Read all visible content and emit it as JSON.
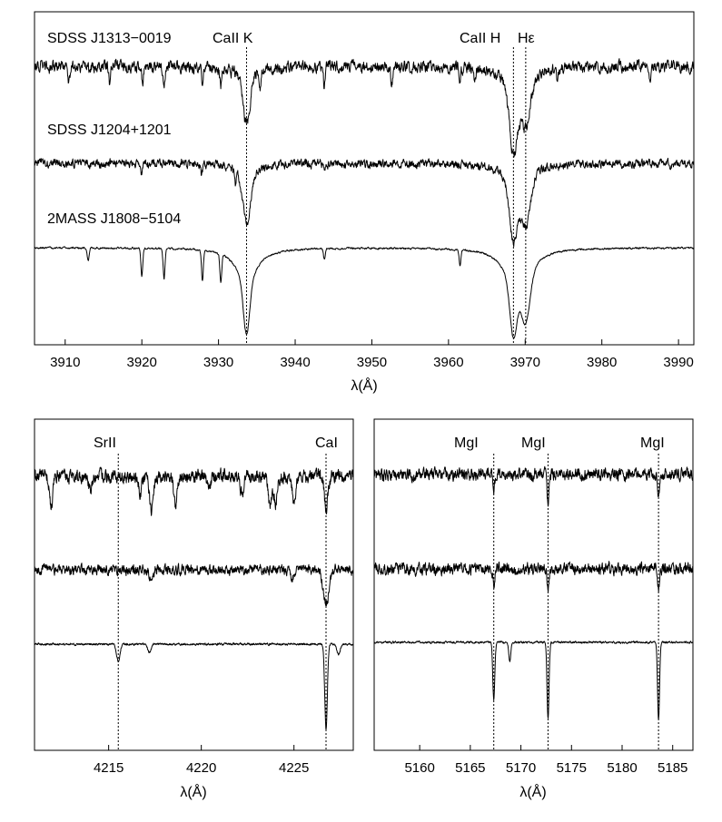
{
  "chart_data": [
    {
      "type": "line",
      "xlabel": "λ(Å)",
      "xlim": [
        3906,
        3992
      ],
      "xticks": [
        3910,
        3920,
        3930,
        3940,
        3950,
        3960,
        3970,
        3980,
        3990
      ],
      "markers": [
        3933.66,
        3968.47,
        3970.07
      ],
      "annotations": [
        "SDSS J1313−0019",
        "CaII K",
        "CaII H",
        "Hε",
        "SDSS J1204+1201",
        "2MASS J1808−5104"
      ],
      "series": [
        {
          "name": "SDSS J1313−0019",
          "noise": "high",
          "lines": [
            {
              "x": 3910.5,
              "depth": 0.45
            },
            {
              "x": 3913.2,
              "depth": 0.25
            },
            {
              "x": 3915.8,
              "depth": 0.55
            },
            {
              "x": 3920.1,
              "depth": 0.5
            },
            {
              "x": 3922.9,
              "depth": 0.55
            },
            {
              "x": 3927.9,
              "depth": 0.6
            },
            {
              "x": 3930.3,
              "depth": 0.55
            },
            {
              "x": 3933.66,
              "depth": 1.3,
              "width": 0.45
            },
            {
              "x": 3935.4,
              "depth": 0.55
            },
            {
              "x": 3943.8,
              "depth": 0.55
            },
            {
              "x": 3952.6,
              "depth": 0.55
            },
            {
              "x": 3961.5,
              "depth": 0.3
            },
            {
              "x": 3963.4,
              "depth": 0.35
            },
            {
              "x": 3968.47,
              "depth": 1.8,
              "width": 0.5
            },
            {
              "x": 3970.07,
              "depth": 1.2,
              "width": 0.6
            },
            {
              "x": 3974.2,
              "depth": 0.4
            },
            {
              "x": 3986.3,
              "depth": 0.5
            }
          ],
          "wings": {
            "3933.66": 0.35,
            "3968.47": 0.6,
            "3970.07": 0.3
          }
        },
        {
          "name": "SDSS J1204+1201",
          "noise": "medium",
          "lines": [
            {
              "x": 3920.0,
              "depth": 0.35
            },
            {
              "x": 3927.8,
              "depth": 0.4
            },
            {
              "x": 3932.2,
              "depth": 0.5
            },
            {
              "x": 3933.66,
              "depth": 1.5,
              "width": 0.5
            },
            {
              "x": 3943.8,
              "depth": 0.25
            },
            {
              "x": 3968.47,
              "depth": 1.8,
              "width": 0.5
            },
            {
              "x": 3970.07,
              "depth": 1.4,
              "width": 0.6
            }
          ],
          "wings": {
            "3933.66": 0.4,
            "3968.47": 0.55,
            "3970.07": 0.35
          }
        },
        {
          "name": "2MASS J1808−5104",
          "noise": "low",
          "lines": [
            {
              "x": 3913.0,
              "depth": 0.25
            },
            {
              "x": 3920.0,
              "depth": 0.55
            },
            {
              "x": 3922.9,
              "depth": 0.6
            },
            {
              "x": 3927.9,
              "depth": 0.6
            },
            {
              "x": 3930.3,
              "depth": 0.55
            },
            {
              "x": 3933.66,
              "depth": 1.0,
              "width": 0.4
            },
            {
              "x": 3943.8,
              "depth": 0.2
            },
            {
              "x": 3961.5,
              "depth": 0.3
            },
            {
              "x": 3968.47,
              "depth": 1.0,
              "width": 0.45
            },
            {
              "x": 3970.07,
              "depth": 0.85,
              "width": 0.55
            }
          ],
          "wings": {
            "3933.66": 0.7,
            "3968.47": 0.6,
            "3970.07": 0.35
          }
        }
      ]
    },
    {
      "type": "line",
      "xlabel": "λ(Å)",
      "xlim": [
        4211,
        4228.2
      ],
      "xticks": [
        4215,
        4220,
        4225
      ],
      "markers": [
        4215.52,
        4226.73
      ],
      "annotations": [
        "SrII",
        "CaI"
      ],
      "series": [
        {
          "name": "SDSS J1313−0019",
          "noise": "high",
          "lines": [
            {
              "x": 4211.9,
              "depth": 0.55
            },
            {
              "x": 4214.0,
              "depth": 0.25
            },
            {
              "x": 4216.7,
              "depth": 0.3
            },
            {
              "x": 4217.3,
              "depth": 0.65
            },
            {
              "x": 4218.6,
              "depth": 0.55
            },
            {
              "x": 4220.4,
              "depth": 0.25
            },
            {
              "x": 4222.2,
              "depth": 0.3
            },
            {
              "x": 4223.7,
              "depth": 0.55
            },
            {
              "x": 4224.0,
              "depth": 0.5
            },
            {
              "x": 4225.0,
              "depth": 0.45
            },
            {
              "x": 4226.73,
              "depth": 0.6
            }
          ]
        },
        {
          "name": "SDSS J1204+1201",
          "noise": "medium",
          "lines": [
            {
              "x": 4217.3,
              "depth": 0.2
            },
            {
              "x": 4224.9,
              "depth": 0.25
            },
            {
              "x": 4226.73,
              "depth": 0.7,
              "width": 0.15
            }
          ]
        },
        {
          "name": "2MASS J1808−5104",
          "noise": "low",
          "lines": [
            {
              "x": 4215.52,
              "depth": 0.25
            },
            {
              "x": 4217.2,
              "depth": 0.12
            },
            {
              "x": 4226.73,
              "depth": 1.25,
              "width": 0.07
            },
            {
              "x": 4227.4,
              "depth": 0.15
            }
          ]
        }
      ]
    },
    {
      "type": "line",
      "xlabel": "λ(Å)",
      "xlim": [
        5155.5,
        5187
      ],
      "xticks": [
        5160,
        5165,
        5170,
        5175,
        5180,
        5185
      ],
      "markers": [
        5167.32,
        5172.68,
        5183.6
      ],
      "annotations": [
        "MgI",
        "MgI",
        "MgI"
      ],
      "series": [
        {
          "name": "SDSS J1313−0019",
          "noise": "high",
          "lines": [
            {
              "x": 5167.32,
              "depth": 0.3
            },
            {
              "x": 5172.68,
              "depth": 0.6
            },
            {
              "x": 5183.6,
              "depth": 0.35
            }
          ]
        },
        {
          "name": "SDSS J1204+1201",
          "noise": "medium",
          "lines": [
            {
              "x": 5167.32,
              "depth": 0.35
            },
            {
              "x": 5172.68,
              "depth": 0.45
            },
            {
              "x": 5183.6,
              "depth": 0.4
            }
          ]
        },
        {
          "name": "2MASS J1808−5104",
          "noise": "low",
          "lines": [
            {
              "x": 5167.32,
              "depth": 0.9
            },
            {
              "x": 5168.9,
              "depth": 0.3
            },
            {
              "x": 5172.68,
              "depth": 1.2
            },
            {
              "x": 5183.6,
              "depth": 1.2
            }
          ]
        }
      ]
    }
  ]
}
